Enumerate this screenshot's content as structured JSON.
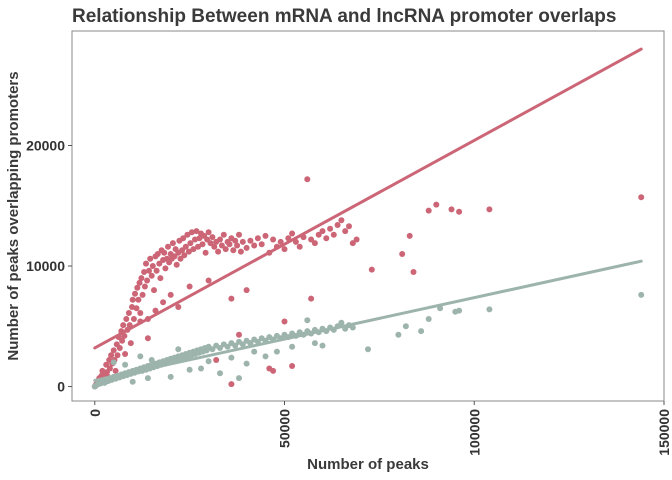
{
  "chart_data": {
    "type": "scatter",
    "title": "Relationship Between mRNA and lncRNA promoter overlaps",
    "xlabel": "Number of peaks",
    "ylabel": "Number of peaks overlapping promoters",
    "xlim": [
      -6000,
      150000
    ],
    "ylim": [
      -1200,
      29500
    ],
    "x_ticks": [
      0,
      50000,
      100000,
      150000
    ],
    "x_tick_labels": [
      "0",
      "50000",
      "100000",
      "150000"
    ],
    "y_ticks": [
      0,
      10000,
      20000
    ],
    "y_tick_labels": [
      "0",
      "10000",
      "20000"
    ],
    "grid": false,
    "legend": "none",
    "series": [
      {
        "color": "#CC6677",
        "points": [
          [
            0,
            0
          ],
          [
            300,
            150
          ],
          [
            600,
            300
          ],
          [
            900,
            500
          ],
          [
            1200,
            700
          ],
          [
            1500,
            300
          ],
          [
            1800,
            900
          ],
          [
            2000,
            1300
          ],
          [
            2400,
            600
          ],
          [
            2600,
            1000
          ],
          [
            3000,
            1800
          ],
          [
            3200,
            1200
          ],
          [
            3500,
            800
          ],
          [
            3800,
            2200
          ],
          [
            4000,
            1500
          ],
          [
            4300,
            2600
          ],
          [
            4600,
            1900
          ],
          [
            5000,
            3000
          ],
          [
            5200,
            2200
          ],
          [
            5500,
            1300
          ],
          [
            5800,
            3500
          ],
          [
            6000,
            2600
          ],
          [
            6300,
            4100
          ],
          [
            6600,
            3200
          ],
          [
            7000,
            4600
          ],
          [
            7200,
            3800
          ],
          [
            7500,
            5100
          ],
          [
            7800,
            4200
          ],
          [
            8000,
            2700
          ],
          [
            8300,
            5600
          ],
          [
            8600,
            4700
          ],
          [
            9000,
            6100
          ],
          [
            9200,
            5100
          ],
          [
            9500,
            3600
          ],
          [
            9800,
            6600
          ],
          [
            10000,
            7200
          ],
          [
            10300,
            5600
          ],
          [
            10600,
            7700
          ],
          [
            11000,
            6500
          ],
          [
            11200,
            8200
          ],
          [
            11500,
            7200
          ],
          [
            11800,
            8600
          ],
          [
            12000,
            6100
          ],
          [
            12300,
            9000
          ],
          [
            12600,
            7600
          ],
          [
            13000,
            9500
          ],
          [
            13200,
            8300
          ],
          [
            13500,
            10200
          ],
          [
            13800,
            8800
          ],
          [
            14000,
            5600
          ],
          [
            14300,
            9600
          ],
          [
            14600,
            10600
          ],
          [
            15000,
            9200
          ],
          [
            15300,
            10000
          ],
          [
            15600,
            8000
          ],
          [
            16000,
            10800
          ],
          [
            16300,
            9600
          ],
          [
            16600,
            11000
          ],
          [
            17000,
            10200
          ],
          [
            17300,
            9000
          ],
          [
            17600,
            11300
          ],
          [
            18000,
            10500
          ],
          [
            18300,
            11100
          ],
          [
            18600,
            9800
          ],
          [
            19000,
            10600
          ],
          [
            19300,
            11600
          ],
          [
            19600,
            10300
          ],
          [
            20000,
            11000
          ],
          [
            20300,
            10600
          ],
          [
            20600,
            11900
          ],
          [
            21000,
            10800
          ],
          [
            21300,
            11400
          ],
          [
            21600,
            10100
          ],
          [
            22000,
            11100
          ],
          [
            22300,
            12100
          ],
          [
            22600,
            10600
          ],
          [
            23000,
            11300
          ],
          [
            23300,
            12300
          ],
          [
            23600,
            10900
          ],
          [
            24000,
            11600
          ],
          [
            24400,
            12600
          ],
          [
            24800,
            11200
          ],
          [
            25200,
            11900
          ],
          [
            25600,
            12800
          ],
          [
            26000,
            11400
          ],
          [
            26400,
            12200
          ],
          [
            26800,
            12900
          ],
          [
            27200,
            11600
          ],
          [
            27600,
            12300
          ],
          [
            28000,
            12700
          ],
          [
            28400,
            11800
          ],
          [
            28800,
            12500
          ],
          [
            29200,
            11100
          ],
          [
            29600,
            12200
          ],
          [
            30000,
            12800
          ],
          [
            30500,
            11900
          ],
          [
            31000,
            12400
          ],
          [
            31500,
            11600
          ],
          [
            32000,
            12000
          ],
          [
            32500,
            11200
          ],
          [
            33000,
            12200
          ],
          [
            33500,
            11700
          ],
          [
            34000,
            12600
          ],
          [
            34500,
            11400
          ],
          [
            35000,
            12000
          ],
          [
            35500,
            11800
          ],
          [
            36000,
            12300
          ],
          [
            36500,
            11300
          ],
          [
            37000,
            12100
          ],
          [
            37500,
            11700
          ],
          [
            38000,
            12600
          ],
          [
            38500,
            11200
          ],
          [
            39000,
            12000
          ],
          [
            40000,
            11500
          ],
          [
            41000,
            12100
          ],
          [
            42000,
            11700
          ],
          [
            43000,
            12300
          ],
          [
            44000,
            11800
          ],
          [
            45000,
            12500
          ],
          [
            46000,
            11100
          ],
          [
            47000,
            12200
          ],
          [
            48000,
            11600
          ],
          [
            49000,
            12000
          ],
          [
            50000,
            11400
          ],
          [
            51000,
            12300
          ],
          [
            52000,
            12700
          ],
          [
            53000,
            12000
          ],
          [
            54000,
            11600
          ],
          [
            55000,
            12400
          ],
          [
            56000,
            17200
          ],
          [
            57000,
            12200
          ],
          [
            58000,
            11900
          ],
          [
            59000,
            12600
          ],
          [
            60000,
            12900
          ],
          [
            61000,
            12300
          ],
          [
            62000,
            13100
          ],
          [
            63000,
            12600
          ],
          [
            64000,
            13400
          ],
          [
            65000,
            13800
          ],
          [
            66000,
            12900
          ],
          [
            67000,
            13300
          ],
          [
            68000,
            11900
          ],
          [
            69000,
            12200
          ],
          [
            12000,
            5400
          ],
          [
            14000,
            4000
          ],
          [
            16000,
            6300
          ],
          [
            18000,
            7000
          ],
          [
            20000,
            7600
          ],
          [
            22000,
            6600
          ],
          [
            25000,
            8300
          ],
          [
            30000,
            8800
          ],
          [
            32000,
            2200
          ],
          [
            36000,
            7300
          ],
          [
            38000,
            4300
          ],
          [
            40000,
            8000
          ],
          [
            46000,
            1500
          ],
          [
            50000,
            5400
          ],
          [
            52000,
            1700
          ],
          [
            57000,
            7300
          ],
          [
            36000,
            200
          ],
          [
            47000,
            1300
          ],
          [
            73000,
            9700
          ],
          [
            81000,
            11000
          ],
          [
            83000,
            12500
          ],
          [
            84000,
            9500
          ],
          [
            88000,
            14600
          ],
          [
            90000,
            15100
          ],
          [
            94000,
            14700
          ],
          [
            96000,
            14500
          ],
          [
            104000,
            14700
          ],
          [
            144000,
            15700
          ]
        ]
      },
      {
        "color": "#9DB4AC",
        "points": [
          [
            0,
            0
          ],
          [
            300,
            80
          ],
          [
            600,
            150
          ],
          [
            900,
            200
          ],
          [
            1200,
            300
          ],
          [
            1500,
            250
          ],
          [
            1800,
            400
          ],
          [
            2000,
            350
          ],
          [
            2400,
            500
          ],
          [
            2600,
            300
          ],
          [
            3000,
            600
          ],
          [
            3500,
            450
          ],
          [
            4000,
            700
          ],
          [
            4500,
            550
          ],
          [
            5000,
            800
          ],
          [
            5500,
            650
          ],
          [
            6000,
            900
          ],
          [
            6500,
            750
          ],
          [
            7000,
            1000
          ],
          [
            7500,
            850
          ],
          [
            8000,
            1100
          ],
          [
            8500,
            950
          ],
          [
            9000,
            1200
          ],
          [
            9500,
            1050
          ],
          [
            10000,
            1300
          ],
          [
            10500,
            1150
          ],
          [
            11000,
            1400
          ],
          [
            11500,
            1250
          ],
          [
            12000,
            1500
          ],
          [
            12500,
            1300
          ],
          [
            13000,
            1600
          ],
          [
            13500,
            1400
          ],
          [
            14000,
            1700
          ],
          [
            14500,
            1500
          ],
          [
            15000,
            1800
          ],
          [
            15500,
            1600
          ],
          [
            16000,
            1900
          ],
          [
            16500,
            1700
          ],
          [
            17000,
            2000
          ],
          [
            17500,
            1800
          ],
          [
            18000,
            2100
          ],
          [
            18500,
            1900
          ],
          [
            19000,
            2200
          ],
          [
            19500,
            2000
          ],
          [
            20000,
            2300
          ],
          [
            20500,
            2100
          ],
          [
            21000,
            2400
          ],
          [
            21500,
            2200
          ],
          [
            22000,
            2500
          ],
          [
            22500,
            2300
          ],
          [
            23000,
            2600
          ],
          [
            23500,
            2400
          ],
          [
            24000,
            2700
          ],
          [
            24500,
            2500
          ],
          [
            25000,
            2800
          ],
          [
            25500,
            2600
          ],
          [
            26000,
            2900
          ],
          [
            26500,
            2700
          ],
          [
            27000,
            3000
          ],
          [
            27500,
            2800
          ],
          [
            28000,
            3100
          ],
          [
            28500,
            2900
          ],
          [
            29000,
            3200
          ],
          [
            29500,
            3000
          ],
          [
            30000,
            3300
          ],
          [
            31000,
            3100
          ],
          [
            32000,
            3400
          ],
          [
            33000,
            3200
          ],
          [
            34000,
            3500
          ],
          [
            35000,
            3300
          ],
          [
            36000,
            3600
          ],
          [
            37000,
            3400
          ],
          [
            38000,
            3700
          ],
          [
            39000,
            3500
          ],
          [
            40000,
            3800
          ],
          [
            41000,
            3600
          ],
          [
            42000,
            3900
          ],
          [
            43000,
            3700
          ],
          [
            44000,
            4000
          ],
          [
            45000,
            3800
          ],
          [
            46000,
            4100
          ],
          [
            47000,
            3900
          ],
          [
            48000,
            4200
          ],
          [
            49000,
            4000
          ],
          [
            50000,
            4300
          ],
          [
            51000,
            4100
          ],
          [
            52000,
            4400
          ],
          [
            53000,
            4200
          ],
          [
            54000,
            4500
          ],
          [
            55000,
            4300
          ],
          [
            56000,
            4600
          ],
          [
            57000,
            4400
          ],
          [
            58000,
            4700
          ],
          [
            59000,
            4500
          ],
          [
            60000,
            4800
          ],
          [
            61000,
            4600
          ],
          [
            62000,
            4900
          ],
          [
            63000,
            4700
          ],
          [
            64000,
            5000
          ],
          [
            65000,
            5300
          ],
          [
            66000,
            4800
          ],
          [
            67000,
            5100
          ],
          [
            68000,
            4900
          ],
          [
            5000,
            2000
          ],
          [
            8000,
            1800
          ],
          [
            10000,
            400
          ],
          [
            12000,
            2500
          ],
          [
            14000,
            700
          ],
          [
            15000,
            2200
          ],
          [
            20000,
            800
          ],
          [
            22000,
            3100
          ],
          [
            25000,
            1400
          ],
          [
            28000,
            1500
          ],
          [
            30000,
            2100
          ],
          [
            33000,
            1100
          ],
          [
            36000,
            2400
          ],
          [
            38000,
            700
          ],
          [
            40000,
            1900
          ],
          [
            42000,
            2900
          ],
          [
            45000,
            2500
          ],
          [
            48000,
            2900
          ],
          [
            52000,
            3300
          ],
          [
            56000,
            5500
          ],
          [
            58000,
            3600
          ],
          [
            60000,
            3400
          ],
          [
            72000,
            3100
          ],
          [
            80000,
            4300
          ],
          [
            82000,
            5000
          ],
          [
            86000,
            4600
          ],
          [
            88000,
            5600
          ],
          [
            91000,
            6500
          ],
          [
            95000,
            6200
          ],
          [
            96000,
            6300
          ],
          [
            104000,
            6400
          ],
          [
            144000,
            7600
          ]
        ]
      }
    ],
    "trendlines": [
      {
        "color": "#CC6677",
        "from": [
          0,
          3200
        ],
        "to": [
          144000,
          28000
        ]
      },
      {
        "color": "#9DB4AC",
        "from": [
          0,
          500
        ],
        "to": [
          144000,
          10400
        ]
      }
    ]
  }
}
